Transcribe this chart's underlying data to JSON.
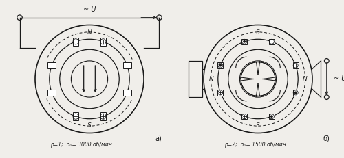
{
  "bg_color": "#f0eeea",
  "line_color": "#1a1a1a",
  "fig_width": 5.0,
  "fig_height": 2.31,
  "dpi": 100,
  "label_a": "a)",
  "label_b": "б)",
  "text_a": "p=1;  n₀= 3000 об/мин",
  "text_b": "p=2;  n₀= 1500 об/мин"
}
